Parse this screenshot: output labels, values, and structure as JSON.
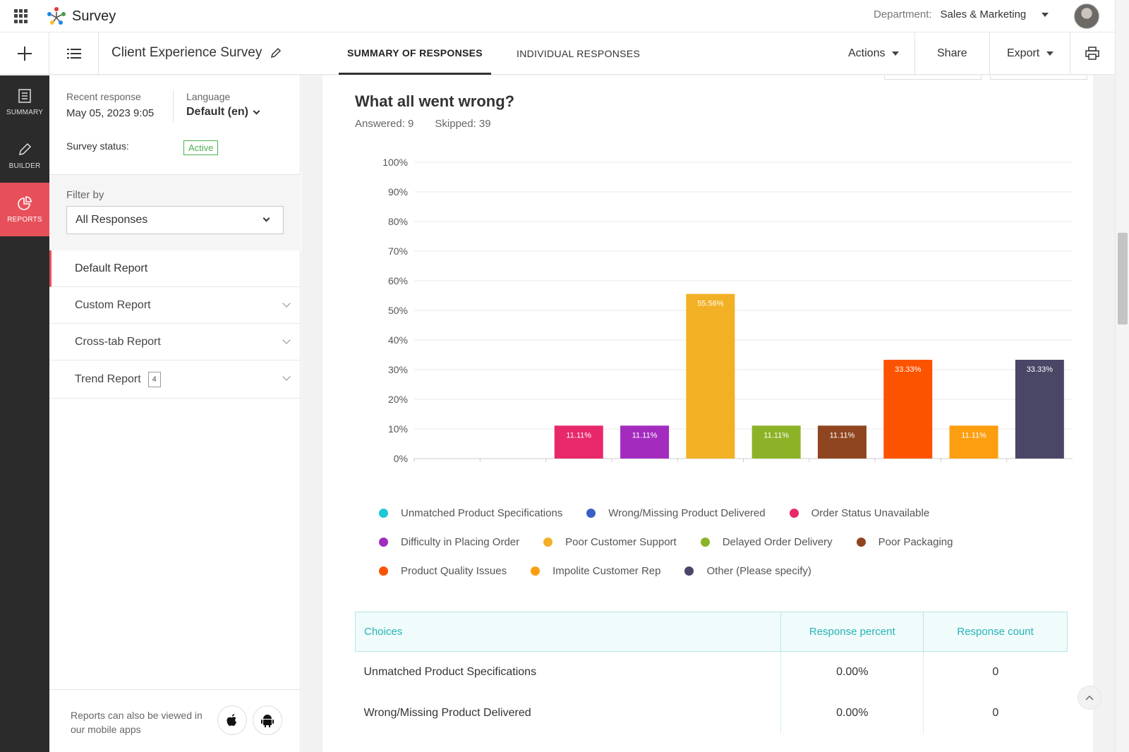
{
  "app": {
    "name": "Survey"
  },
  "header": {
    "department_label": "Department:",
    "department_value": "Sales & Marketing"
  },
  "toolbar": {
    "survey_title": "Client Experience Survey",
    "tabs": [
      "SUMMARY OF RESPONSES",
      "INDIVIDUAL RESPONSES"
    ],
    "actions": "Actions",
    "share": "Share",
    "export": "Export"
  },
  "rail": {
    "items": [
      "SUMMARY",
      "BUILDER",
      "REPORTS"
    ]
  },
  "side": {
    "recent_label": "Recent response",
    "recent_value": "May 05, 2023 9:05",
    "language_label": "Language",
    "language_value": "Default (en)",
    "status_label": "Survey status:",
    "status_value": "Active",
    "filter_label": "Filter by",
    "filter_value": "All Responses",
    "reports": [
      "Default Report",
      "Custom Report",
      "Cross-tab Report",
      "Trend Report"
    ],
    "trend_count": "4",
    "mobile_note": "Reports can also be viewed in our mobile apps"
  },
  "question": {
    "title": "What all went wrong?",
    "answered": "Answered: 9",
    "skipped": "Skipped: 39"
  },
  "chart_data": {
    "type": "bar",
    "categories": [
      "Unmatched Product Specifications",
      "Wrong/Missing Product Delivered",
      "Order Status Unavailable",
      "Difficulty in Placing Order",
      "Poor Customer Support",
      "Delayed Order Delivery",
      "Poor Packaging",
      "Product Quality Issues",
      "Impolite Customer Rep",
      "Other (Please specify)"
    ],
    "values": [
      0,
      0,
      11.11,
      11.11,
      55.56,
      11.11,
      11.11,
      33.33,
      11.11,
      33.33
    ],
    "data_labels": [
      "",
      "",
      "11.11%",
      "11.11%",
      "55.56%",
      "11.11%",
      "11.11%",
      "33.33%",
      "11.11%",
      "33.33%"
    ],
    "colors": [
      "#1ec8d8",
      "#3a5fc7",
      "#e8286b",
      "#a32cbf",
      "#f2b125",
      "#8cb327",
      "#8f4520",
      "#fc5300",
      "#fd9e10",
      "#4a4666"
    ],
    "yticks": [
      "100%",
      "90%",
      "80%",
      "70%",
      "60%",
      "50%",
      "40%",
      "30%",
      "20%",
      "10%",
      "0%"
    ],
    "ylim": [
      0,
      100
    ],
    "grid": true,
    "legend_position": "bottom"
  },
  "table": {
    "headers": [
      "Choices",
      "Response percent",
      "Response count"
    ],
    "rows": [
      [
        "Unmatched Product Specifications",
        "0.00%",
        "0"
      ],
      [
        "Wrong/Missing Product Delivered",
        "0.00%",
        "0"
      ]
    ]
  },
  "colors": {
    "accent": "#e7505a",
    "teal": "#26b3b7",
    "active_green": "#4caf50"
  }
}
